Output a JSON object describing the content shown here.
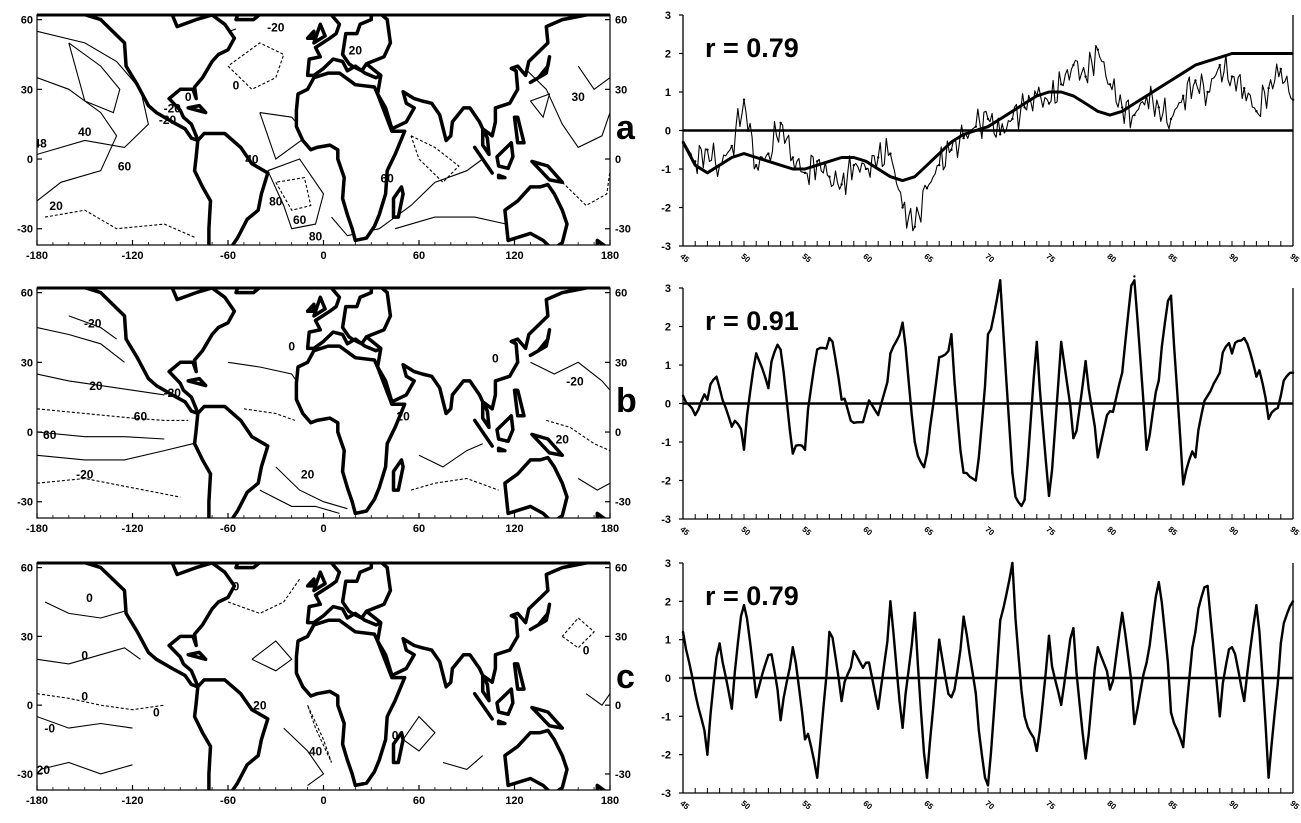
{
  "panels": [
    {
      "label": "a",
      "map": {
        "lon_ticks": [
          "-180",
          "-120",
          "-60",
          "0",
          "60",
          "120",
          "180"
        ],
        "lat_ticks_left": [
          "60",
          "30",
          "0",
          "-30"
        ],
        "lat_ticks_right": [
          "60",
          "30",
          "0",
          "-30"
        ],
        "contour_labels": [
          "-20",
          "0",
          "-20",
          "40",
          "60",
          "20",
          "-20",
          "40",
          "80",
          "60",
          "20",
          "60",
          "80",
          "30",
          "0",
          "48"
        ]
      },
      "series_label": "r = 0.79"
    },
    {
      "label": "b",
      "map": {
        "lon_ticks": [
          "-180",
          "-120",
          "-60",
          "0",
          "60",
          "120",
          "180"
        ],
        "lat_ticks_left": [
          "60",
          "30",
          "0",
          "-30"
        ],
        "lat_ticks_right": [
          "60",
          "30",
          "0",
          "-30"
        ],
        "contour_labels": [
          "-20",
          "20",
          "-20",
          "0",
          "60",
          "60",
          "-20",
          "20",
          "20",
          "0",
          "-20",
          "20"
        ]
      },
      "series_label": "r = 0.91"
    },
    {
      "label": "c",
      "map": {
        "lon_ticks": [
          "-180",
          "-120",
          "-60",
          "0",
          "60",
          "120",
          "180"
        ],
        "lat_ticks_left": [
          "60",
          "30",
          "0",
          "-30"
        ],
        "lat_ticks_right": [
          "60",
          "30",
          "0",
          "-30"
        ],
        "contour_labels": [
          "0",
          "0",
          "0",
          "-0",
          "0",
          "20",
          "40",
          "0",
          "0",
          "20",
          "0"
        ]
      },
      "series_label": "r = 0.79"
    }
  ],
  "chart_data": [
    {
      "type": "line",
      "panel": "a",
      "annotation": "r = 0.79",
      "ylim": [
        -3,
        3
      ],
      "y_ticks": [
        "3",
        "2",
        "1",
        "0",
        "-1",
        "-2",
        "-3"
      ],
      "x_ticks": [
        "45",
        "50",
        "55",
        "60",
        "65",
        "70",
        "75",
        "80",
        "85",
        "90",
        "95"
      ],
      "xlim": [
        1945,
        1995
      ],
      "series": [
        {
          "style": "thin",
          "x": [
            1945,
            1946,
            1947,
            1948,
            1949,
            1950,
            1951,
            1952,
            1953,
            1954,
            1955,
            1956,
            1957,
            1958,
            1959,
            1960,
            1961,
            1962,
            1963,
            1964,
            1965,
            1966,
            1967,
            1968,
            1969,
            1970,
            1971,
            1972,
            1973,
            1974,
            1975,
            1976,
            1977,
            1978,
            1979,
            1980,
            1981,
            1982,
            1983,
            1984,
            1985,
            1986,
            1987,
            1988,
            1989,
            1990,
            1991,
            1992,
            1993,
            1994,
            1995
          ],
          "values": [
            -0.3,
            -0.8,
            -0.5,
            -0.9,
            -0.4,
            0.8,
            -0.9,
            -0.6,
            0.2,
            -0.7,
            -1.1,
            -0.8,
            -1.2,
            -1.4,
            -0.9,
            -1.0,
            -0.7,
            -0.6,
            -2.0,
            -2.5,
            -1.5,
            -0.9,
            -0.5,
            -0.2,
            0.1,
            0.3,
            -0.1,
            0.3,
            0.6,
            0.9,
            0.7,
            1.2,
            1.7,
            1.4,
            2.1,
            1.2,
            0.6,
            0.4,
            0.9,
            0.6,
            0.3,
            0.9,
            1.3,
            1.0,
            1.7,
            1.4,
            1.1,
            0.5,
            1.1,
            1.6,
            0.8
          ]
        },
        {
          "style": "thick-smooth",
          "x": [
            1945,
            1946,
            1947,
            1948,
            1949,
            1950,
            1951,
            1952,
            1953,
            1954,
            1955,
            1956,
            1957,
            1958,
            1959,
            1960,
            1961,
            1962,
            1963,
            1964,
            1965,
            1966,
            1967,
            1968,
            1969,
            1970,
            1971,
            1972,
            1973,
            1974,
            1975,
            1976,
            1977,
            1978,
            1979,
            1980,
            1981,
            1982,
            1983,
            1984,
            1985,
            1986,
            1987,
            1988,
            1989,
            1990,
            1991,
            1992,
            1993,
            1994,
            1995
          ],
          "values": [
            -0.3,
            -0.9,
            -1.1,
            -0.9,
            -0.7,
            -0.6,
            -0.7,
            -0.8,
            -0.9,
            -1.0,
            -1.0,
            -0.9,
            -0.8,
            -0.7,
            -0.7,
            -0.8,
            -1.0,
            -1.2,
            -1.3,
            -1.2,
            -0.9,
            -0.6,
            -0.3,
            -0.1,
            0.0,
            0.1,
            0.3,
            0.5,
            0.7,
            0.9,
            1.0,
            1.0,
            0.9,
            0.7,
            0.5,
            0.4,
            0.5,
            0.7,
            0.9,
            1.1,
            1.3,
            1.5,
            1.7,
            1.8,
            1.9,
            2.0,
            2.0,
            2.0,
            2.0,
            2.0,
            2.0
          ]
        }
      ]
    },
    {
      "type": "line",
      "panel": "b",
      "annotation": "r = 0.91",
      "ylim": [
        -3,
        3
      ],
      "y_ticks": [
        "3",
        "2",
        "1",
        "0",
        "-1",
        "-2",
        "-3"
      ],
      "x_ticks": [
        "45",
        "50",
        "55",
        "60",
        "65",
        "70",
        "75",
        "80",
        "85",
        "90",
        "95"
      ],
      "xlim": [
        1945,
        1995
      ],
      "series": [
        {
          "style": "thick",
          "x": [
            1945,
            1946,
            1947,
            1948,
            1949,
            1950,
            1951,
            1952,
            1953,
            1954,
            1955,
            1956,
            1957,
            1958,
            1959,
            1960,
            1961,
            1962,
            1963,
            1964,
            1965,
            1966,
            1967,
            1968,
            1969,
            1970,
            1971,
            1972,
            1973,
            1974,
            1975,
            1976,
            1977,
            1978,
            1979,
            1980,
            1981,
            1982,
            1983,
            1984,
            1985,
            1986,
            1987,
            1988,
            1989,
            1990,
            1991,
            1992,
            1993,
            1994,
            1995
          ],
          "values": [
            0.2,
            -0.3,
            0.1,
            0.4,
            -0.6,
            -1.2,
            1.3,
            0.4,
            1.4,
            -1.3,
            -1.2,
            1.4,
            1.7,
            0.1,
            -0.5,
            -0.2,
            -0.3,
            1.3,
            2.1,
            -1.0,
            -1.3,
            1.2,
            1.8,
            -1.8,
            -2.0,
            1.8,
            3.2,
            -1.8,
            -2.5,
            1.6,
            -2.4,
            1.6,
            -0.9,
            1.1,
            -1.4,
            -0.2,
            0.8,
            3.3,
            -1.2,
            0.6,
            2.8,
            -2.1,
            -1.4,
            0.2,
            0.8,
            1.3,
            1.7,
            0.7,
            -0.4,
            0.2,
            0.8
          ]
        }
      ]
    },
    {
      "type": "line",
      "panel": "c",
      "annotation": "r = 0.79",
      "ylim": [
        -3,
        3
      ],
      "y_ticks": [
        "3",
        "2",
        "1",
        "0",
        "-1",
        "-2",
        "-3"
      ],
      "x_ticks": [
        "45",
        "50",
        "55",
        "60",
        "65",
        "70",
        "75",
        "80",
        "85",
        "90",
        "95"
      ],
      "xlim": [
        1945,
        1995
      ],
      "series": [
        {
          "style": "thick",
          "x": [
            1945,
            1946,
            1947,
            1948,
            1949,
            1950,
            1951,
            1952,
            1953,
            1954,
            1955,
            1956,
            1957,
            1958,
            1959,
            1960,
            1961,
            1962,
            1963,
            1964,
            1965,
            1966,
            1967,
            1968,
            1969,
            1970,
            1971,
            1972,
            1973,
            1974,
            1975,
            1976,
            1977,
            1978,
            1979,
            1980,
            1981,
            1982,
            1983,
            1984,
            1985,
            1986,
            1987,
            1988,
            1989,
            1990,
            1991,
            1992,
            1993,
            1994,
            1995
          ],
          "values": [
            1.2,
            -0.4,
            -2.0,
            0.9,
            -0.8,
            1.9,
            -0.5,
            0.6,
            -1.1,
            0.8,
            -1.6,
            -2.6,
            1.2,
            -0.6,
            0.7,
            0.4,
            -0.8,
            2.0,
            -1.3,
            1.7,
            -2.6,
            1.0,
            -0.5,
            1.6,
            -0.4,
            -2.8,
            1.5,
            3.0,
            -1.0,
            -1.9,
            1.1,
            -0.7,
            1.3,
            -2.1,
            0.8,
            -0.3,
            1.7,
            -1.2,
            0.4,
            2.5,
            -0.9,
            -1.8,
            1.2,
            2.4,
            -1.0,
            0.8,
            -0.6,
            1.9,
            -2.6,
            0.9,
            2.0
          ]
        }
      ]
    }
  ]
}
